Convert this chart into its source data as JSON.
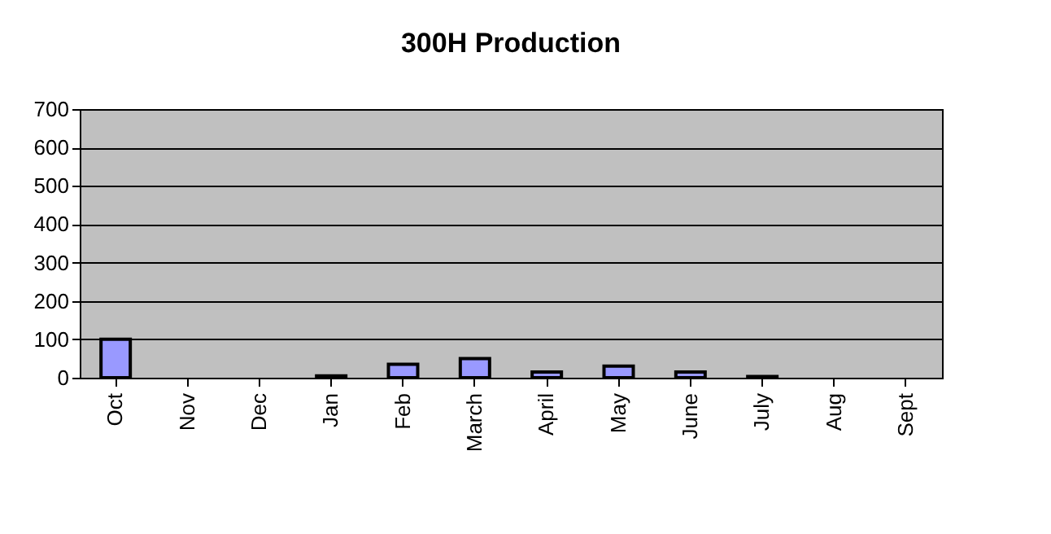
{
  "chart_data": {
    "type": "bar",
    "title": "300H Production",
    "categories": [
      "Oct",
      "Nov",
      "Dec",
      "Jan",
      "Feb",
      "March",
      "April",
      "May",
      "June",
      "July",
      "Aug",
      "Sept"
    ],
    "values": [
      100,
      null,
      null,
      5,
      35,
      50,
      15,
      30,
      15,
      3,
      null,
      null
    ],
    "color": "#9999ff",
    "ylim": [
      0,
      700
    ],
    "yticks": [
      0,
      100,
      200,
      300,
      400,
      500,
      600,
      700
    ],
    "grid": "y"
  }
}
